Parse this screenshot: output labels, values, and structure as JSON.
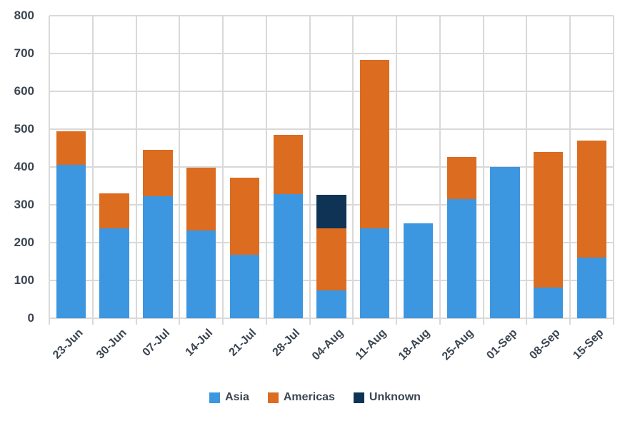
{
  "chart_data": {
    "type": "bar",
    "stacked": true,
    "title": "",
    "categories": [
      "23-Jun",
      "30-Jun",
      "07-Jul",
      "14-Jul",
      "21-Jul",
      "28-Jul",
      "04-Aug",
      "11-Aug",
      "18-Aug",
      "25-Aug",
      "01-Sep",
      "08-Sep",
      "15-Sep"
    ],
    "series": [
      {
        "name": "Asia",
        "color": "#3d96e0",
        "values": [
          405,
          238,
          322,
          233,
          168,
          329,
          74,
          238,
          251,
          315,
          400,
          82,
          161
        ]
      },
      {
        "name": "Americas",
        "color": "#db6c20",
        "values": [
          90,
          92,
          123,
          165,
          203,
          156,
          164,
          445,
          0,
          111,
          0,
          358,
          308
        ]
      },
      {
        "name": "Unknown",
        "color": "#0f3355",
        "values": [
          0,
          0,
          0,
          0,
          0,
          0,
          88,
          0,
          0,
          0,
          0,
          0,
          0
        ]
      }
    ],
    "ylim": [
      0,
      800
    ],
    "yticks": [
      0,
      100,
      200,
      300,
      400,
      500,
      600,
      700,
      800
    ],
    "xlabel": "",
    "ylabel": "",
    "grid": true,
    "legend_position": "bottom",
    "x_label_rotation_deg": -45
  },
  "styles": {
    "axis_text_color": "#3b4551",
    "gridline_color": "#d9d9d9",
    "background": "#ffffff"
  }
}
